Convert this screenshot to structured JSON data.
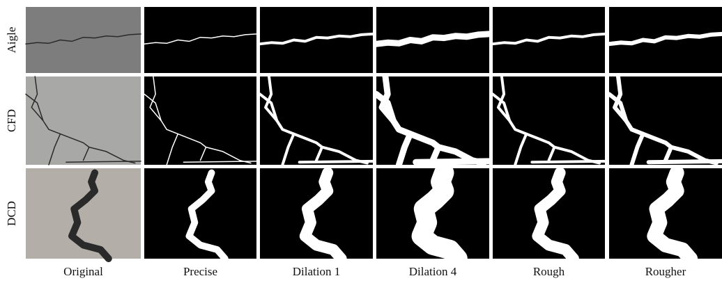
{
  "figure": {
    "row_labels": [
      "Aigle",
      "CFD",
      "DCD"
    ],
    "column_labels": [
      "Original",
      "Precise",
      "Dilation 1",
      "Dilation 4",
      "Rough",
      "Rougher"
    ]
  }
}
